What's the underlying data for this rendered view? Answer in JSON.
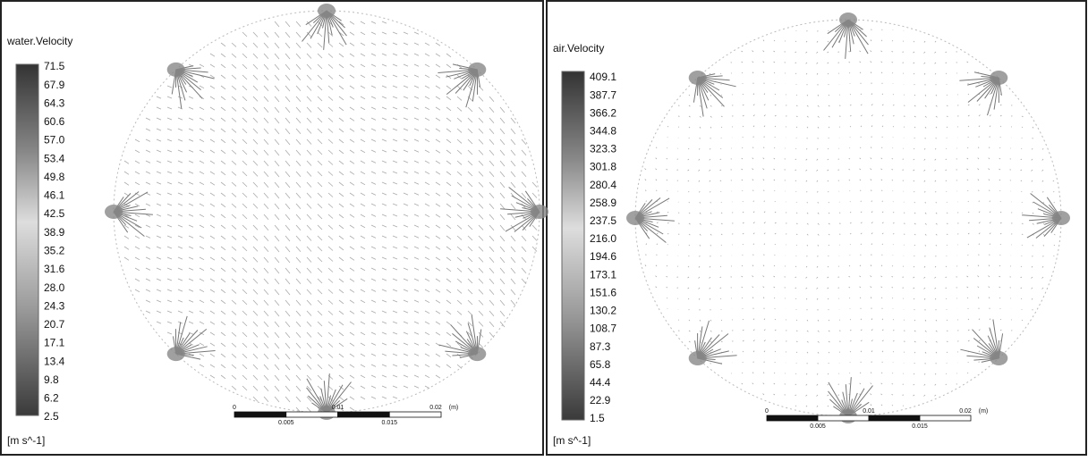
{
  "panels": [
    {
      "title": "water.Velocity",
      "legend": [
        "71.5",
        "67.9",
        "64.3",
        "60.6",
        "57.0",
        "53.4",
        "49.8",
        "46.1",
        "42.5",
        "38.9",
        "35.2",
        "31.6",
        "28.0",
        "24.3",
        "20.7",
        "17.1",
        "13.4",
        "9.8",
        "6.2",
        "2.5"
      ],
      "unit": "[m s^-1]",
      "scale_top": [
        "0",
        "0.01",
        "0.02",
        "(m)"
      ],
      "scale_bottom": [
        "0.005",
        "0.015"
      ]
    },
    {
      "title": "air.Velocity",
      "legend": [
        "409.1",
        "387.7",
        "366.2",
        "344.8",
        "323.3",
        "301.8",
        "280.4",
        "258.9",
        "237.5",
        "216.0",
        "194.6",
        "173.1",
        "151.6",
        "130.2",
        "108.7",
        "87.3",
        "65.8",
        "44.4",
        "22.9",
        "1.5"
      ],
      "unit": "[m s^-1]",
      "scale_top": [
        "0",
        "0.01",
        "0.02",
        "(m)"
      ],
      "scale_bottom": [
        "0.005",
        "0.015"
      ]
    }
  ]
}
